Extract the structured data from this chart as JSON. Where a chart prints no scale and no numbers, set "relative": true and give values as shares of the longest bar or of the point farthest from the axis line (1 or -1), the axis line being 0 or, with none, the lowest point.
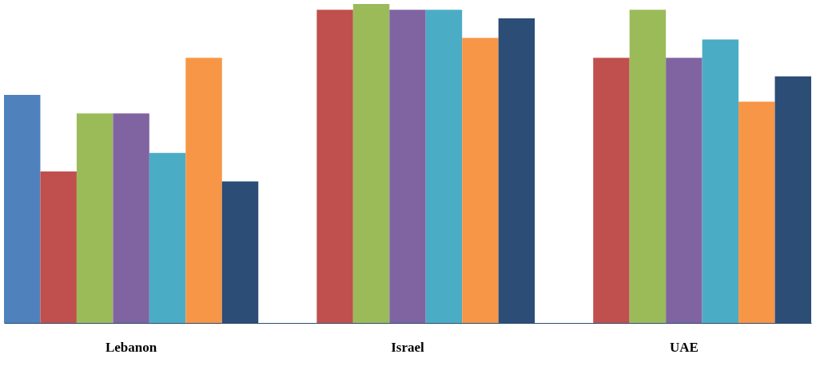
{
  "chart_data": {
    "type": "bar",
    "relative": true,
    "categories": [
      "Lebanon",
      "Israel",
      "UAE"
    ],
    "grid": false,
    "legend": false,
    "series": [
      {
        "color": "#4f81bd",
        "values": [
          0.715,
          0,
          0
        ]
      },
      {
        "color": "#c0504d",
        "values": [
          0.475,
          0.982,
          0.831
        ]
      },
      {
        "color": "#9bbb59",
        "values": [
          0.657,
          1,
          0.982
        ]
      },
      {
        "color": "#8064a2",
        "values": [
          0.657,
          0.982,
          0.831
        ]
      },
      {
        "color": "#4bacc6",
        "values": [
          0.533,
          0.982,
          0.889
        ]
      },
      {
        "color": "#f79646",
        "values": [
          0.831,
          0.894,
          0.694
        ]
      },
      {
        "color": "#2c4d75",
        "values": [
          0.444,
          0.955,
          0.773
        ]
      }
    ]
  }
}
